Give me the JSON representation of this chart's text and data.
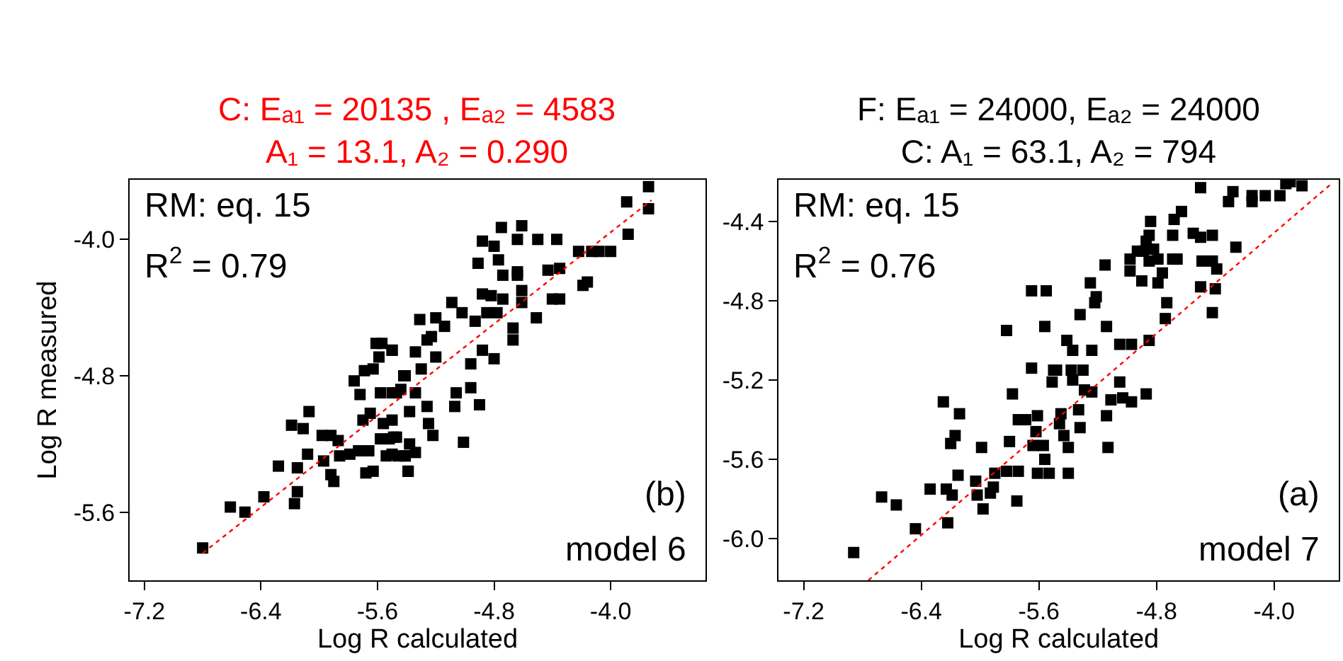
{
  "chart_data": [
    {
      "type": "scatter",
      "title": "C: Eₐ₁ = 20135 , Eₐ₂ = 4583\nA₁ = 13.1, A₂ = 0.290",
      "xlabel": "Log R calculated",
      "ylabel": "Log R measured",
      "xlim": [
        -7.3,
        -3.35
      ],
      "ylim": [
        -6.0,
        -3.65
      ],
      "xticks": [
        -7.2,
        -6.4,
        -5.6,
        -4.8,
        {
          "value": -4.0,
          "label": "-4.0"
        }
      ],
      "yticks": [
        -5.6,
        -4.8,
        {
          "value": -4.0,
          "label": "-4.0"
        }
      ],
      "annotations": [
        "RM: eq. 15",
        "R$^{2}$ = 0.79",
        "(b)",
        "model 6"
      ],
      "series": [
        {
          "color": "#000000",
          "marker": "square",
          "x": [
            -6.8,
            -6.61,
            -6.51,
            -6.38,
            -6.17,
            -6.15,
            -6.28,
            -6.15,
            -6.08,
            -6.19,
            -6.11,
            -6.07,
            -5.98,
            -5.92,
            -5.87,
            -5.97,
            -5.92,
            -5.9,
            -5.86,
            -5.79,
            -5.73,
            -5.66,
            -5.68,
            -5.63,
            -5.76,
            -5.72,
            -5.69,
            -5.63,
            -5.61,
            -5.57,
            -5.59,
            -5.5,
            -5.58,
            -5.5,
            -5.44,
            -5.42,
            -5.7,
            -5.65,
            -5.56,
            -5.58,
            -5.52,
            -5.47,
            -5.54,
            -5.46,
            -5.41,
            -5.39,
            -5.38,
            -3.74,
            -3.89,
            -3.74,
            -3.88,
            -4.0,
            -4.08,
            -4.13,
            -4.22,
            -4.19,
            -4.16,
            -4.35,
            -4.43,
            -4.4,
            -4.35,
            -4.51,
            -4.67,
            -4.67,
            -4.61,
            -4.61,
            -4.64,
            -4.61,
            -4.75,
            -4.64,
            -4.5,
            -4.37,
            -4.88,
            -4.8,
            -4.77,
            -4.91,
            -4.74,
            -4.64,
            -4.88,
            -4.82,
            -4.74,
            -5.09,
            -5.02,
            -4.93,
            -4.85,
            -4.78,
            -5.31,
            -5.2,
            -5.14,
            -5.23,
            -5.26,
            -5.5,
            -5.34,
            -5.2,
            -4.88,
            -4.8,
            -4.96,
            -5.41,
            -5.3,
            -5.34,
            -5.47,
            -5.26,
            -5.06,
            -4.96,
            -4.9,
            -5.07,
            -5.38,
            -5.25,
            -5.22,
            -5.01,
            -5.49,
            -5.5,
            -5.41,
            -5.34,
            -5.39,
            -5.5
          ],
          "values": [
            -5.81,
            -5.57,
            -5.6,
            -5.51,
            -5.55,
            -5.48,
            -5.33,
            -5.34,
            -5.26,
            -5.09,
            -5.11,
            -5.01,
            -5.15,
            -5.15,
            -5.18,
            -5.3,
            -5.38,
            -5.42,
            -5.27,
            -5.26,
            -5.24,
            -5.24,
            -5.37,
            -5.36,
            -4.83,
            -4.91,
            -4.77,
            -4.76,
            -4.61,
            -4.61,
            -4.69,
            -4.65,
            -4.9,
            -4.9,
            -4.88,
            -4.8,
            -5.06,
            -5.02,
            -5.08,
            -5.17,
            -5.17,
            -5.16,
            -5.27,
            -5.27,
            -5.27,
            -5.36,
            -5.2,
            -3.69,
            -3.78,
            -3.82,
            -3.97,
            -4.07,
            -4.07,
            -4.07,
            -4.07,
            -4.27,
            -4.25,
            -4.17,
            -4.18,
            -4.35,
            -4.35,
            -4.46,
            -4.52,
            -4.59,
            -4.37,
            -4.3,
            -4.19,
            -3.92,
            -3.93,
            -4.0,
            -4.0,
            -4.0,
            -4.01,
            -4.04,
            -4.12,
            -4.14,
            -4.21,
            -4.21,
            -4.32,
            -4.33,
            -4.35,
            -4.37,
            -4.43,
            -4.48,
            -4.43,
            -4.43,
            -4.47,
            -4.46,
            -4.51,
            -4.57,
            -4.59,
            -4.65,
            -4.66,
            -4.69,
            -4.65,
            -4.7,
            -4.73,
            -4.8,
            -4.76,
            -4.9,
            -4.9,
            -4.98,
            -4.9,
            -4.87,
            -4.97,
            -4.98,
            -5.01,
            -5.08,
            -5.15,
            -5.19,
            -5.16,
            -5.26,
            -5.27,
            -5.25,
            -5.36,
            -5.06
          ]
        },
        {
          "type": "line",
          "color": "#ff0000",
          "marker": "none",
          "line_style": "dotted",
          "x": [
            -6.8,
            -3.72
          ],
          "values": [
            -5.84,
            -3.77
          ]
        }
      ]
    },
    {
      "type": "scatter",
      "title": "F: Eₐ₁ = 24000, Eₐ₂ = 24000\nC: A₁ = 63.1, A₂ = 794",
      "xlabel": "Log R calculated",
      "xlim": [
        -7.37,
        -3.56
      ],
      "ylim": [
        -6.21,
        -4.19
      ],
      "xticks": [
        -7.2,
        -6.4,
        -5.6,
        -4.8,
        {
          "value": -4.0,
          "label": "-4.0"
        }
      ],
      "yticks": [
        {
          "value": -6.0,
          "label": "-6.0"
        },
        -5.6,
        -5.2,
        -4.8,
        -4.4
      ],
      "annotations": [
        "RM: eq. 15",
        "R$^{2}$ = 0.76",
        "(a)",
        "model 7"
      ],
      "series": [
        {
          "color": "#000000",
          "marker": "square",
          "x": [
            -6.86,
            -6.67,
            -6.57,
            -6.44,
            -6.22,
            -6.34,
            -6.23,
            -6.19,
            -6.15,
            -6.25,
            -6.14,
            -6.17,
            -6.2,
            -5.99,
            -6.03,
            -6.02,
            -5.98,
            -5.93,
            -5.91,
            -5.9,
            -5.82,
            -5.74,
            -5.75,
            -5.8,
            -5.82,
            -5.78,
            -5.74,
            -5.69,
            -5.65,
            -5.65,
            -5.55,
            -5.56,
            -5.61,
            -5.62,
            -5.64,
            -5.57,
            -5.56,
            -5.61,
            -5.5,
            -5.51,
            -3.92,
            -3.89,
            -3.81,
            -3.96,
            -4.06,
            -4.15,
            -4.15,
            -4.28,
            -4.31,
            -4.5,
            -4.63,
            -4.68,
            -4.69,
            -4.84,
            -4.85,
            -4.87,
            -4.55,
            -4.5,
            -4.42,
            -4.26,
            -4.93,
            -4.89,
            -4.82,
            -4.79,
            -4.98,
            -4.85,
            -4.69,
            -4.66,
            -4.76,
            -4.9,
            -4.79,
            -4.98,
            -5.15,
            -4.49,
            -4.42,
            -4.39,
            -4.5,
            -4.4,
            -4.73,
            -4.74,
            -4.42,
            -5.21,
            -5.25,
            -5.22,
            -5.32,
            -5.14,
            -5.41,
            -5.37,
            -5.24,
            -5.05,
            -4.97,
            -4.85,
            -5.48,
            -5.38,
            -5.3,
            -5.37,
            -5.29,
            -5.24,
            -5.05,
            -5.03,
            -5.11,
            -4.97,
            -4.87,
            -5.14,
            -5.33,
            -5.32,
            -5.45,
            -5.46,
            -5.43,
            -5.4,
            -5.13,
            -5.53,
            -5.4
          ],
          "values": [
            -6.07,
            -5.79,
            -5.83,
            -5.95,
            -5.92,
            -5.75,
            -5.75,
            -5.78,
            -5.68,
            -5.31,
            -5.37,
            -5.48,
            -5.52,
            -5.54,
            -5.71,
            -5.78,
            -5.85,
            -5.77,
            -5.74,
            -5.67,
            -5.66,
            -5.66,
            -5.81,
            -5.51,
            -4.95,
            -5.27,
            -5.4,
            -5.4,
            -5.14,
            -4.75,
            -4.75,
            -4.93,
            -5.38,
            -5.46,
            -5.53,
            -5.53,
            -5.6,
            -5.67,
            -5.15,
            -5.21,
            -4.21,
            -4.2,
            -4.22,
            -4.27,
            -4.27,
            -4.27,
            -4.3,
            -4.25,
            -4.3,
            -4.23,
            -4.35,
            -4.39,
            -4.47,
            -4.4,
            -4.47,
            -4.5,
            -4.46,
            -4.48,
            -4.47,
            -4.53,
            -4.55,
            -4.55,
            -4.54,
            -4.59,
            -4.59,
            -4.6,
            -4.59,
            -4.59,
            -4.66,
            -4.7,
            -4.71,
            -4.65,
            -4.62,
            -4.6,
            -4.6,
            -4.64,
            -4.73,
            -4.74,
            -4.81,
            -4.89,
            -4.86,
            -4.78,
            -4.71,
            -4.81,
            -4.87,
            -4.93,
            -5.0,
            -5.05,
            -5.05,
            -5.02,
            -5.02,
            -5.0,
            -5.15,
            -5.15,
            -5.15,
            -5.2,
            -5.25,
            -5.26,
            -5.21,
            -5.29,
            -5.3,
            -5.31,
            -5.27,
            -5.38,
            -5.35,
            -5.44,
            -5.37,
            -5.42,
            -5.48,
            -5.54,
            -5.54,
            -5.67,
            -5.67
          ]
        },
        {
          "type": "line",
          "color": "#ff0000",
          "marker": "none",
          "line_style": "dotted",
          "x": [
            -6.76,
            -3.61
          ],
          "values": [
            -6.21,
            -4.21
          ]
        }
      ]
    }
  ]
}
